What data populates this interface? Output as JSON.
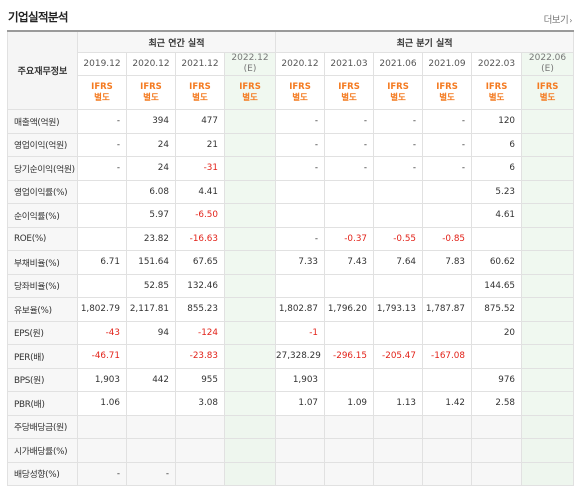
{
  "header": {
    "title": "기업실적분석",
    "more_label": "더보기",
    "more_icon": "chevron-right-icon"
  },
  "table": {
    "label_header": "주요재무정보",
    "groups": [
      {
        "label": "최근 연간 실적",
        "span": 4
      },
      {
        "label": "최근 분기 실적",
        "span": 6
      }
    ],
    "periods": [
      {
        "label": "2019.12",
        "est": false
      },
      {
        "label": "2020.12",
        "est": false
      },
      {
        "label": "2021.12",
        "est": false
      },
      {
        "label": "2022.12",
        "sub": "(E)",
        "est": true
      },
      {
        "label": "2020.12",
        "est": false
      },
      {
        "label": "2021.03",
        "est": false
      },
      {
        "label": "2021.06",
        "est": false
      },
      {
        "label": "2021.09",
        "est": false
      },
      {
        "label": "2022.03",
        "est": false
      },
      {
        "label": "2022.06",
        "sub": "(E)",
        "est": true
      }
    ],
    "ifrs": [
      "IFRS",
      "별도"
    ],
    "rows": [
      {
        "label": "매출액(억원)",
        "values": [
          "-",
          "394",
          "477",
          "",
          "-",
          "-",
          "-",
          "-",
          "120",
          ""
        ]
      },
      {
        "label": "영업이익(억원)",
        "values": [
          "-",
          "24",
          "21",
          "",
          "-",
          "-",
          "-",
          "-",
          "6",
          ""
        ]
      },
      {
        "label": "당기순이익(억원)",
        "values": [
          "-",
          "24",
          "-31",
          "",
          "-",
          "-",
          "-",
          "-",
          "6",
          ""
        ]
      },
      {
        "label": "영업이익률(%)",
        "values": [
          "",
          "6.08",
          "4.41",
          "",
          "",
          "",
          "",
          "",
          "5.23",
          ""
        ],
        "group": true
      },
      {
        "label": "순이익률(%)",
        "values": [
          "",
          "5.97",
          "-6.50",
          "",
          "",
          "",
          "",
          "",
          "4.61",
          ""
        ]
      },
      {
        "label": "ROE(%)",
        "values": [
          "",
          "23.82",
          "-16.63",
          "",
          "-",
          "-0.37",
          "-0.55",
          "-0.85",
          "",
          ""
        ]
      },
      {
        "label": "부채비율(%)",
        "values": [
          "6.71",
          "151.64",
          "67.65",
          "",
          "7.33",
          "7.43",
          "7.64",
          "7.83",
          "60.62",
          ""
        ],
        "group": true
      },
      {
        "label": "당좌비율(%)",
        "values": [
          "",
          "52.85",
          "132.46",
          "",
          "",
          "",
          "",
          "",
          "144.65",
          ""
        ]
      },
      {
        "label": "유보율(%)",
        "values": [
          "1,802.79",
          "2,117.81",
          "855.23",
          "",
          "1,802.87",
          "1,796.20",
          "1,793.13",
          "1,787.87",
          "875.52",
          ""
        ]
      },
      {
        "label": "EPS(원)",
        "values": [
          "-43",
          "94",
          "-124",
          "",
          "-1",
          "",
          "",
          "",
          "20",
          ""
        ],
        "group": true
      },
      {
        "label": "PER(배)",
        "values": [
          "-46.71",
          "",
          "-23.83",
          "",
          "27,328.29",
          "-296.15",
          "-205.47",
          "-167.08",
          "",
          ""
        ]
      },
      {
        "label": "BPS(원)",
        "values": [
          "1,903",
          "442",
          "955",
          "",
          "1,903",
          "",
          "",
          "",
          "976",
          ""
        ]
      },
      {
        "label": "PBR(배)",
        "values": [
          "1.06",
          "",
          "3.08",
          "",
          "1.07",
          "1.09",
          "1.13",
          "1.42",
          "2.58",
          ""
        ]
      },
      {
        "label": "주당배당금(원)",
        "values": [
          "",
          "",
          "",
          "",
          "",
          "",
          "",
          "",
          "",
          ""
        ],
        "group": true,
        "gray": true
      },
      {
        "label": "시가배당률(%)",
        "values": [
          "",
          "",
          "",
          "",
          "",
          "",
          "",
          "",
          "",
          ""
        ],
        "gray": true
      },
      {
        "label": "배당성향(%)",
        "values": [
          "-",
          "-",
          "",
          "",
          "",
          "",
          "",
          "",
          "",
          ""
        ],
        "gray": true
      }
    ]
  },
  "colors": {
    "negative": "#e2231a",
    "ifrs": "#f47a20",
    "estimate_bg": "#f0f8f0"
  }
}
